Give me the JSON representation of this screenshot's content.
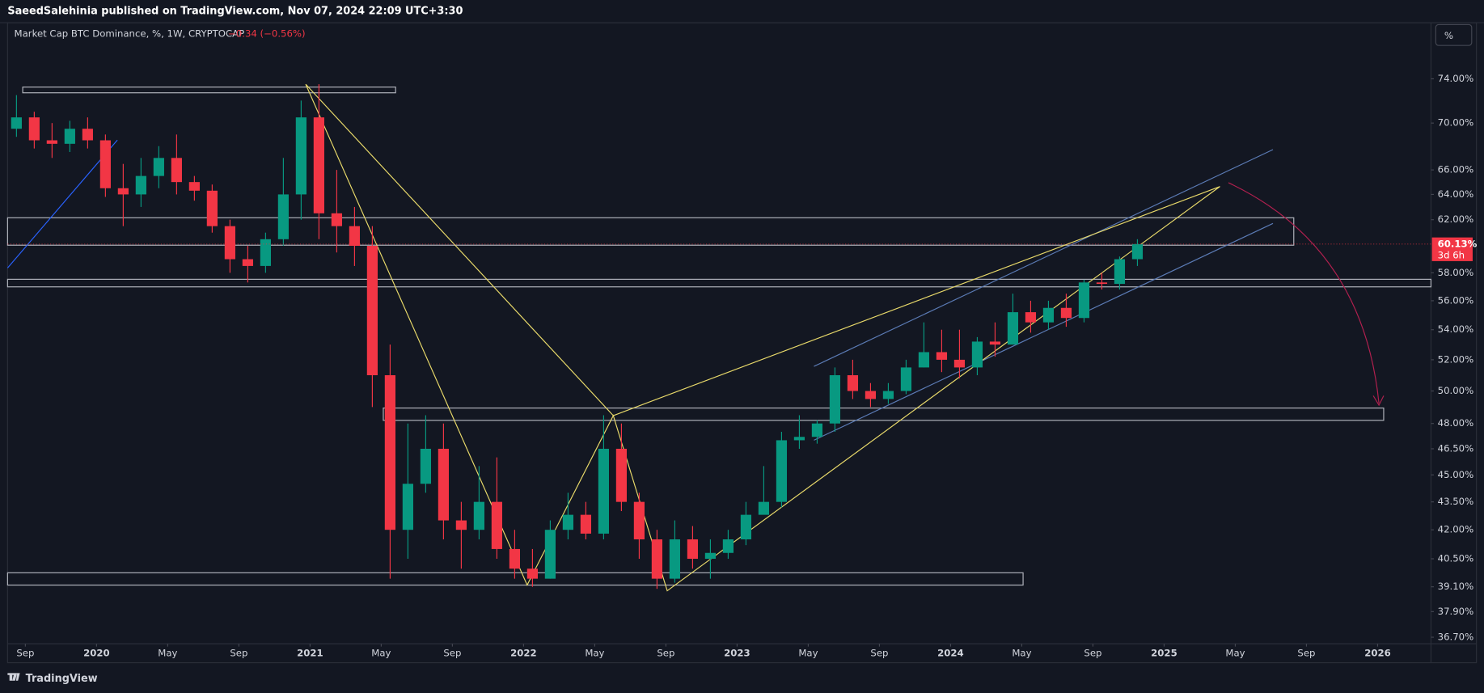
{
  "header": {
    "author_line": "SaeedSalehinia published on TradingView.com, Nov 07, 2024 22:09 UTC+3:30"
  },
  "legend": {
    "symbol": "Market Cap BTC Dominance, %, 1W, CRYPTOCAP",
    "change": "−0.34 (−0.56%)"
  },
  "scale_button": "%",
  "footer": {
    "brand": "TradingView"
  },
  "chart_data": {
    "type": "candlestick",
    "log_scale": true,
    "up_color": "#089981",
    "down_color": "#f23645",
    "x": [
      "2019-08",
      "2019-09",
      "2019-10",
      "2019-11",
      "2019-12",
      "2020-01",
      "2020-02",
      "2020-03",
      "2020-04",
      "2020-05",
      "2020-06",
      "2020-07",
      "2020-08",
      "2020-09",
      "2020-10",
      "2020-11",
      "2020-12",
      "2021-01",
      "2021-02",
      "2021-03",
      "2021-04",
      "2021-05",
      "2021-06",
      "2021-07",
      "2021-08",
      "2021-09",
      "2021-10",
      "2021-11",
      "2021-12",
      "2022-01",
      "2022-02",
      "2022-03",
      "2022-04",
      "2022-05",
      "2022-06",
      "2022-07",
      "2022-08",
      "2022-09",
      "2022-10",
      "2022-11",
      "2022-12",
      "2023-01",
      "2023-02",
      "2023-03",
      "2023-04",
      "2023-05",
      "2023-06",
      "2023-07",
      "2023-08",
      "2023-09",
      "2023-10",
      "2023-11",
      "2023-12",
      "2024-01",
      "2024-02",
      "2024-03",
      "2024-04",
      "2024-05",
      "2024-06",
      "2024-07",
      "2024-08",
      "2024-09",
      "2024-10",
      "2024-11"
    ],
    "open": [
      69.5,
      70.5,
      68.5,
      68.2,
      69.5,
      68.5,
      64.5,
      64,
      65.5,
      67,
      65,
      64.3,
      61.5,
      59,
      58.5,
      60.5,
      64,
      70.5,
      62.5,
      61.5,
      60,
      51,
      42,
      44.5,
      46.5,
      42.5,
      42,
      43.5,
      41,
      40,
      39.5,
      42,
      42.8,
      41.8,
      46.5,
      43.5,
      41.5,
      39.5,
      41.5,
      40.5,
      40.8,
      41.5,
      42.8,
      43.5,
      47,
      47.2,
      48,
      51,
      50,
      49.5,
      50,
      51.5,
      52.5,
      52,
      51.5,
      53.2,
      53,
      55.2,
      54.5,
      55.5,
      54.8,
      57.3,
      57.2,
      59
    ],
    "high": [
      72.5,
      71,
      70,
      70.2,
      70.5,
      69,
      66.5,
      67,
      68,
      69,
      65.5,
      64.8,
      62,
      60,
      61,
      67,
      72,
      73.5,
      66,
      63,
      61.5,
      53,
      48,
      48.5,
      48,
      43.5,
      45.5,
      46,
      42,
      41,
      42.5,
      44,
      43.5,
      48.5,
      48,
      44,
      42,
      42.5,
      42.2,
      41.5,
      42,
      43.5,
      45.5,
      47.5,
      48.5,
      48.2,
      51.5,
      52,
      50.5,
      50.5,
      52,
      54.5,
      54,
      54,
      53.5,
      54.5,
      56.5,
      56,
      56,
      56.5,
      57.5,
      58,
      59.2,
      60.5
    ],
    "low": [
      68.8,
      67.8,
      67,
      67.5,
      67.8,
      63.8,
      61.5,
      63,
      64.5,
      64,
      63.5,
      61,
      58,
      57.3,
      58,
      60,
      62,
      60.5,
      59.5,
      58.5,
      49,
      39.5,
      40.5,
      44,
      41.5,
      40,
      41.5,
      40.5,
      39.5,
      39.1,
      39.5,
      41.5,
      41.5,
      41.5,
      43,
      40.5,
      39,
      39.3,
      40,
      39.5,
      40.5,
      41.2,
      43,
      43.2,
      46.5,
      46.8,
      47.5,
      49.5,
      49,
      49.2,
      49.8,
      51.5,
      51.2,
      50.8,
      51,
      52.2,
      53,
      53.8,
      54,
      54.2,
      54.5,
      56.8,
      56.8,
      58.5
    ],
    "close": [
      70.5,
      68.5,
      68.2,
      69.5,
      68.5,
      64.5,
      64,
      65.5,
      67,
      65,
      64.3,
      61.5,
      59,
      58.5,
      60.5,
      64,
      70.5,
      62.5,
      61.5,
      60,
      51,
      42,
      44.5,
      46.5,
      42.5,
      42,
      43.5,
      41,
      40,
      39.5,
      42,
      42.8,
      41.8,
      46.5,
      43.5,
      41.5,
      39.5,
      41.5,
      40.5,
      40.8,
      41.5,
      42.8,
      43.5,
      47,
      47.2,
      48,
      51,
      50,
      49.5,
      50,
      51.5,
      52.5,
      52,
      51.5,
      53.2,
      53,
      55.2,
      54.5,
      55.5,
      54.8,
      57.3,
      57.2,
      59,
      60.13
    ],
    "xlim": [
      "2019-08",
      "2026-04"
    ],
    "xticks": [
      {
        "value": "2019-09",
        "label": "Sep"
      },
      {
        "value": "2020-01",
        "label": "2020"
      },
      {
        "value": "2020-05",
        "label": "May"
      },
      {
        "value": "2020-09",
        "label": "Sep"
      },
      {
        "value": "2021-01",
        "label": "2021"
      },
      {
        "value": "2021-05",
        "label": "May"
      },
      {
        "value": "2021-09",
        "label": "Sep"
      },
      {
        "value": "2022-01",
        "label": "2022"
      },
      {
        "value": "2022-05",
        "label": "May"
      },
      {
        "value": "2022-09",
        "label": "Sep"
      },
      {
        "value": "2023-01",
        "label": "2023"
      },
      {
        "value": "2023-05",
        "label": "May"
      },
      {
        "value": "2023-09",
        "label": "Sep"
      },
      {
        "value": "2024-01",
        "label": "2024"
      },
      {
        "value": "2024-05",
        "label": "May"
      },
      {
        "value": "2024-09",
        "label": "Sep"
      },
      {
        "value": "2025-01",
        "label": "2025"
      },
      {
        "value": "2025-05",
        "label": "May"
      },
      {
        "value": "2025-09",
        "label": "Sep"
      },
      {
        "value": "2026-01",
        "label": "2026"
      }
    ],
    "ylim": [
      36.4,
      79.4
    ],
    "yticks": [
      {
        "value": 74,
        "label": "74.00%"
      },
      {
        "value": 70,
        "label": "70.00%"
      },
      {
        "value": 66,
        "label": "66.00%"
      },
      {
        "value": 64,
        "label": "64.00%"
      },
      {
        "value": 62,
        "label": "62.00%"
      },
      {
        "value": 58,
        "label": "58.00%"
      },
      {
        "value": 56,
        "label": "56.00%"
      },
      {
        "value": 54,
        "label": "54.00%"
      },
      {
        "value": 52,
        "label": "52.00%"
      },
      {
        "value": 50,
        "label": "50.00%"
      },
      {
        "value": 48,
        "label": "48.00%"
      },
      {
        "value": 46.5,
        "label": "46.50%"
      },
      {
        "value": 45,
        "label": "45.00%"
      },
      {
        "value": 43.5,
        "label": "43.50%"
      },
      {
        "value": 42,
        "label": "42.00%"
      },
      {
        "value": 40.5,
        "label": "40.50%"
      },
      {
        "value": 39.1,
        "label": "39.10%"
      },
      {
        "value": 37.9,
        "label": "37.90%"
      },
      {
        "value": 36.7,
        "label": "36.70%"
      }
    ],
    "last_price": {
      "value": 60.13,
      "label": "60.13%"
    },
    "countdown": "3d 6h"
  }
}
